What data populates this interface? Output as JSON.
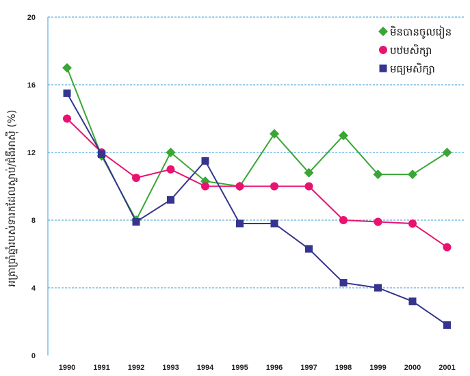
{
  "chart_data": {
    "type": "line",
    "ylabel": "អត្រាប្រាំឆ្នាំរបស់ទារកដែលស្លាប់/ជំងឺអាស៊ី (%)",
    "x": [
      "1990",
      "1991",
      "1992",
      "1993",
      "1994",
      "1995",
      "1996",
      "1997",
      "1998",
      "1999",
      "2000",
      "2001"
    ],
    "ylim": [
      0,
      20
    ],
    "yticks": [
      "0",
      "4",
      "8",
      "12",
      "16",
      "20"
    ],
    "grid": true,
    "legend_position": "top-right",
    "series": [
      {
        "name": "មិនបានចូលរៀន",
        "color": "#3aa635",
        "marker": "diamond",
        "values": [
          17,
          11.8,
          8,
          12,
          10.3,
          10,
          13.1,
          10.8,
          13,
          10.7,
          10.7,
          12
        ]
      },
      {
        "name": "បឋមសិក្សា",
        "color": "#e8126f",
        "marker": "circle",
        "values": [
          14,
          12,
          10.5,
          11,
          10,
          10,
          10,
          10,
          8,
          7.9,
          7.8,
          6.4
        ]
      },
      {
        "name": "មធ្យមសិក្សា",
        "color": "#35358f",
        "marker": "square",
        "values": [
          15.5,
          11.9,
          7.9,
          9.2,
          11.5,
          7.8,
          7.8,
          6.3,
          4.3,
          4,
          3.2,
          1.8
        ]
      }
    ]
  }
}
